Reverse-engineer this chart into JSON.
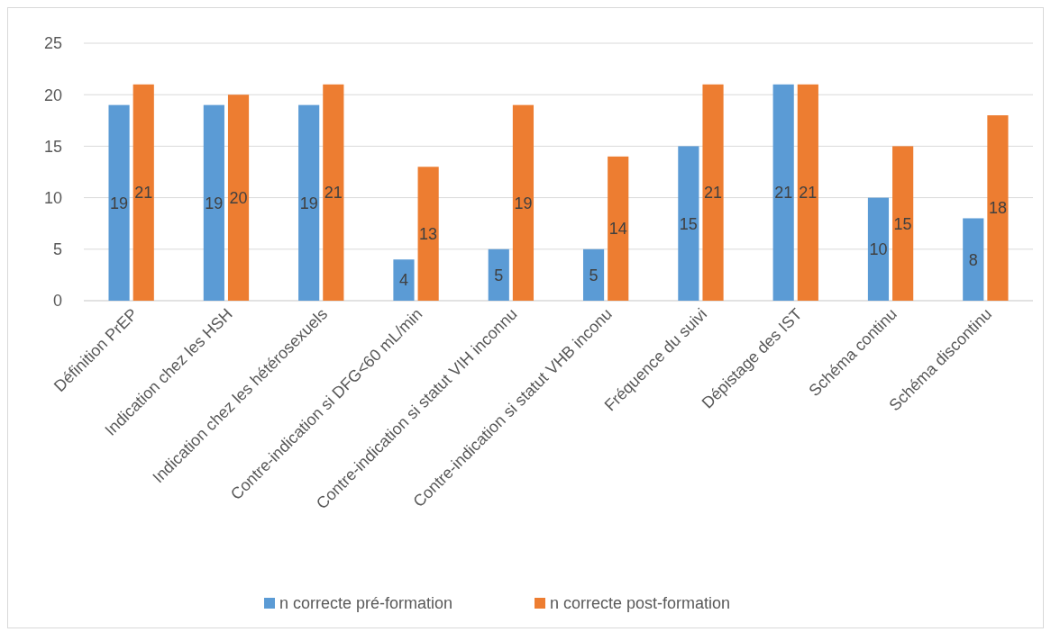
{
  "chart_data": {
    "type": "bar",
    "categories": [
      "Définition PrEP",
      "Indication chez les HSH",
      "Indication chez les hétérosexuels",
      "Contre-indication si DFG<60 mL/min",
      "Contre-indication si statut VIH inconnu",
      "Contre-indication si statut VHB inconu",
      "Fréquence du suivi",
      "Dépistage des IST",
      "Schéma continu",
      "Schéma discontinu"
    ],
    "series": [
      {
        "name": "n correcte pré-formation",
        "color": "#5b9bd5",
        "values": [
          19,
          19,
          19,
          4,
          5,
          5,
          15,
          21,
          10,
          8
        ]
      },
      {
        "name": "n correcte post-formation",
        "color": "#ed7d31",
        "values": [
          21,
          20,
          21,
          13,
          19,
          14,
          21,
          21,
          15,
          18
        ]
      }
    ],
    "ylim": [
      0,
      25
    ],
    "yticks": [
      0,
      5,
      10,
      15,
      20,
      25
    ],
    "grid": "y",
    "legend": "bottom",
    "data_labels": true
  }
}
